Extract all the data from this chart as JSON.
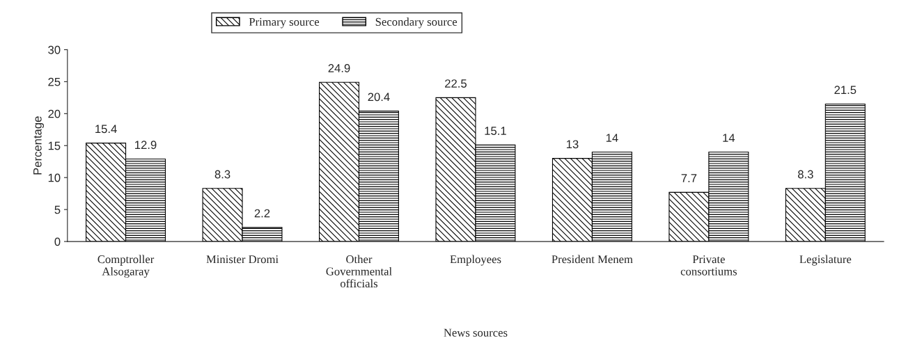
{
  "chart_data": {
    "type": "bar",
    "xlabel": "News sources",
    "ylabel": "Percentage",
    "categories": [
      "Comptroller\nAlsogaray",
      "Minister Dromi",
      "Other\nGovernmental\nofficials",
      "Employees",
      "President Menem",
      "Private\nconsortiums",
      "Legislature"
    ],
    "series": [
      {
        "name": "Primary source",
        "color": "#000000",
        "values": [
          15.4,
          8.3,
          24.9,
          22.5,
          13,
          7.7,
          8.3
        ]
      },
      {
        "name": "Secondary source",
        "color": "#000000",
        "values": [
          12.9,
          2.2,
          20.4,
          15.1,
          14,
          14,
          21.5
        ]
      }
    ],
    "ylim": [
      0,
      30
    ],
    "yticks": [
      0,
      5,
      10,
      15,
      20,
      25,
      30
    ],
    "data_labels": true,
    "grid": false,
    "legend": "top"
  }
}
